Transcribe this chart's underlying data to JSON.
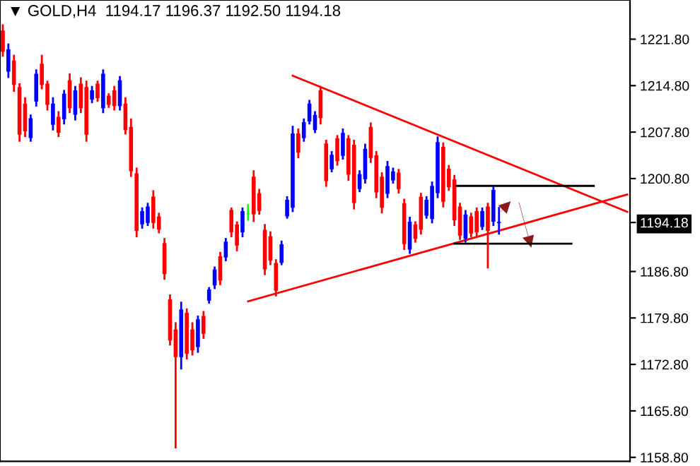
{
  "chart_data": {
    "type": "candlestick",
    "title": "▼ GOLD,H4  1194.17 1196.37 1192.50 1194.18",
    "categories": [
      null,
      null,
      null,
      null,
      null,
      null,
      null,
      null,
      null,
      null,
      null,
      null,
      null,
      null,
      null,
      null,
      null,
      null,
      null,
      null,
      null,
      null,
      null,
      null,
      null,
      null,
      null,
      null,
      null,
      null,
      null,
      null,
      null,
      null,
      null,
      null,
      null,
      null,
      null,
      null,
      null,
      null,
      null,
      null,
      null,
      null,
      null,
      null,
      null,
      null,
      null,
      null,
      null,
      null,
      null,
      null,
      null,
      null,
      null,
      null,
      null,
      null,
      null,
      null,
      null,
      null,
      null,
      null,
      null,
      null,
      null,
      null,
      null,
      null,
      null,
      null,
      null,
      null,
      null,
      null,
      null,
      null,
      null,
      null,
      null,
      null,
      null,
      null,
      null,
      null,
      null,
      null,
      null,
      null,
      null,
      null,
      null,
      null,
      null,
      null,
      null,
      null,
      null,
      null,
      null,
      null,
      null,
      null,
      null,
      null,
      null,
      null,
      null
    ],
    "ohlc": [
      [
        1223.0,
        1223.9,
        1219.3,
        1220.0
      ],
      [
        1217.0,
        1221.0,
        1216.1,
        1220.2
      ],
      [
        1218.5,
        1219.3,
        1214.0,
        1215.0
      ],
      [
        1214.5,
        1215.0,
        1206.5,
        1207.5
      ],
      [
        1212.0,
        1212.9,
        1207.2,
        1208.0
      ],
      [
        1207.0,
        1210.3,
        1206.5,
        1209.8
      ],
      [
        1212.5,
        1217.1,
        1211.8,
        1216.5
      ],
      [
        1218.0,
        1219.3,
        1214.4,
        1215.0
      ],
      [
        1215.0,
        1215.4,
        1211.2,
        1212.0
      ],
      [
        1209.0,
        1212.9,
        1208.2,
        1212.0
      ],
      [
        1210.0,
        1210.8,
        1207.2,
        1207.8
      ],
      [
        1209.8,
        1214.0,
        1209.1,
        1213.5
      ],
      [
        1215.5,
        1216.5,
        1210.8,
        1211.5
      ],
      [
        1210.5,
        1214.6,
        1209.7,
        1214.0
      ],
      [
        1215.0,
        1215.9,
        1210.8,
        1211.5
      ],
      [
        1214.5,
        1215.4,
        1206.5,
        1207.5
      ],
      [
        1212.8,
        1214.6,
        1212.3,
        1214.0
      ],
      [
        1215.0,
        1215.4,
        1212.5,
        1213.0
      ],
      [
        1211.5,
        1217.1,
        1210.8,
        1216.5
      ],
      [
        1213.2,
        1213.5,
        1211.6,
        1212.0
      ],
      [
        1214.0,
        1214.6,
        1211.2,
        1211.8
      ],
      [
        1211.8,
        1216.1,
        1211.2,
        1215.5
      ],
      [
        1212.0,
        1212.9,
        1207.6,
        1208.2
      ],
      [
        1208.5,
        1209.7,
        1201.2,
        1202.0
      ],
      [
        1201.5,
        1202.3,
        1192.1,
        1193.0
      ],
      [
        1194.0,
        1196.3,
        1193.4,
        1195.8
      ],
      [
        1194.2,
        1197.0,
        1193.8,
        1196.5
      ],
      [
        1198.0,
        1198.9,
        1193.4,
        1194.2
      ],
      [
        1195.0,
        1195.5,
        1192.7,
        1193.2
      ],
      [
        1191.0,
        1191.7,
        1185.7,
        1186.5
      ],
      [
        1182.5,
        1183.2,
        1175.8,
        1176.5
      ],
      [
        1178.0,
        1179.0,
        1160.3,
        1174.0
      ],
      [
        1174.0,
        1182.1,
        1172.2,
        1181.0
      ],
      [
        1180.5,
        1181.1,
        1173.7,
        1174.5
      ],
      [
        1178.0,
        1179.0,
        1174.3,
        1175.0
      ],
      [
        1175.5,
        1180.0,
        1174.7,
        1179.5
      ],
      [
        1180.0,
        1180.7,
        1176.8,
        1177.5
      ],
      [
        1182.5,
        1184.3,
        1182.1,
        1184.0
      ],
      [
        1184.8,
        1187.4,
        1184.3,
        1187.0
      ],
      [
        1189.0,
        1189.6,
        1184.9,
        1185.5
      ],
      [
        1189.0,
        1191.7,
        1188.5,
        1191.2
      ],
      [
        1196.0,
        1196.3,
        1192.1,
        1192.8
      ],
      [
        1193.8,
        1194.2,
        1190.0,
        1190.8
      ],
      [
        1192.8,
        1196.3,
        1192.1,
        1195.8
      ],
      [
        1195.5,
        1196.8,
        1194.6,
        1195.5
      ],
      [
        1201.0,
        1201.9,
        1194.4,
        1195.5
      ],
      [
        1198.5,
        1199.1,
        1195.5,
        1196.0
      ],
      [
        1193.0,
        1193.8,
        1186.4,
        1187.2
      ],
      [
        1192.0,
        1192.7,
        1187.9,
        1188.5
      ],
      [
        1188.0,
        1188.5,
        1183.2,
        1184.0
      ],
      [
        1188.2,
        1191.3,
        1187.9,
        1190.8
      ],
      [
        1195.2,
        1198.0,
        1194.9,
        1197.5
      ],
      [
        1196.5,
        1208.6,
        1195.9,
        1207.5
      ],
      [
        1207.5,
        1208.2,
        1204.0,
        1204.8
      ],
      [
        1207.0,
        1209.7,
        1206.5,
        1209.2
      ],
      [
        1209.5,
        1212.5,
        1209.1,
        1212.0
      ],
      [
        1208.2,
        1210.8,
        1207.8,
        1210.3
      ],
      [
        1214.0,
        1214.6,
        1209.1,
        1210.0
      ],
      [
        1206.0,
        1206.5,
        1199.7,
        1200.5
      ],
      [
        1202.3,
        1204.8,
        1201.9,
        1204.3
      ],
      [
        1206.8,
        1207.2,
        1202.9,
        1203.5
      ],
      [
        1204.3,
        1208.2,
        1203.8,
        1207.6
      ],
      [
        1206.8,
        1207.2,
        1200.6,
        1201.5
      ],
      [
        1205.8,
        1206.5,
        1196.3,
        1197.2
      ],
      [
        1199.3,
        1201.9,
        1198.9,
        1201.4
      ],
      [
        1200.8,
        1205.9,
        1200.2,
        1205.2
      ],
      [
        1208.5,
        1209.1,
        1203.3,
        1204.0
      ],
      [
        1204.2,
        1204.8,
        1198.0,
        1198.8
      ],
      [
        1201.0,
        1201.6,
        1195.7,
        1196.5
      ],
      [
        1198.6,
        1203.3,
        1198.0,
        1202.6
      ],
      [
        1200.6,
        1202.3,
        1200.2,
        1201.8
      ],
      [
        1201.6,
        1202.1,
        1198.7,
        1199.3
      ],
      [
        1197.0,
        1197.6,
        1190.2,
        1191.0
      ],
      [
        1190.2,
        1194.9,
        1189.6,
        1194.2
      ],
      [
        1193.8,
        1194.2,
        1191.3,
        1191.8
      ],
      [
        1198.0,
        1198.5,
        1192.5,
        1193.2
      ],
      [
        1195.3,
        1198.0,
        1194.9,
        1197.5
      ],
      [
        1194.8,
        1200.2,
        1194.2,
        1199.6
      ],
      [
        1198.7,
        1207.0,
        1198.0,
        1206.2
      ],
      [
        1205.5,
        1206.1,
        1196.6,
        1197.4
      ],
      [
        1202.2,
        1202.7,
        1199.1,
        1199.6
      ],
      [
        1200.6,
        1201.2,
        1193.8,
        1194.6
      ],
      [
        1196.5,
        1197.0,
        1191.7,
        1192.3
      ],
      [
        1191.8,
        1195.9,
        1191.3,
        1195.3
      ],
      [
        1195.0,
        1195.5,
        1192.1,
        1192.6
      ],
      [
        1195.8,
        1196.3,
        1192.1,
        1192.8
      ],
      [
        1193.6,
        1196.3,
        1193.2,
        1195.8
      ],
      [
        1196.5,
        1197.0,
        1187.4,
        1193.0
      ],
      [
        1194.4,
        1199.5,
        1193.8,
        1199.0
      ],
      [
        1194.17,
        1196.37,
        1192.5,
        1194.18
      ],
      null,
      null,
      null,
      null,
      null,
      null,
      null,
      null,
      null,
      null,
      null,
      null,
      null,
      null,
      null,
      null,
      null,
      null,
      null,
      null,
      null,
      null,
      null
    ],
    "colors": [
      "#ff0000",
      "#0000ff",
      "#ff0000",
      "#ff0000",
      "#ff0000",
      "#0000ff",
      "#0000ff",
      "#ff0000",
      "#ff0000",
      "#0000ff",
      "#ff0000",
      "#0000ff",
      "#ff0000",
      "#0000ff",
      "#ff0000",
      "#ff0000",
      "#0000ff",
      "#ff0000",
      "#0000ff",
      "#ff0000",
      "#ff0000",
      "#0000ff",
      "#ff0000",
      "#ff0000",
      "#ff0000",
      "#0000ff",
      "#0000ff",
      "#ff0000",
      "#ff0000",
      "#ff0000",
      "#ff0000",
      "#ff0000",
      "#0000ff",
      "#ff0000",
      "#ff0000",
      "#0000ff",
      "#ff0000",
      "#0000ff",
      "#0000ff",
      "#ff0000",
      "#0000ff",
      "#ff0000",
      "#ff0000",
      "#0000ff",
      "#00ff00",
      "#ff0000",
      "#ff0000",
      "#ff0000",
      "#ff0000",
      "#ff0000",
      "#0000ff",
      "#0000ff",
      "#0000ff",
      "#ff0000",
      "#0000ff",
      "#0000ff",
      "#0000ff",
      "#ff0000",
      "#ff0000",
      "#0000ff",
      "#ff0000",
      "#0000ff",
      "#ff0000",
      "#ff0000",
      "#0000ff",
      "#0000ff",
      "#ff0000",
      "#ff0000",
      "#ff0000",
      "#0000ff",
      "#0000ff",
      "#ff0000",
      "#ff0000",
      "#0000ff",
      "#ff0000",
      "#ff0000",
      "#0000ff",
      "#0000ff",
      "#0000ff",
      "#ff0000",
      "#ff0000",
      "#ff0000",
      "#ff0000",
      "#0000ff",
      "#ff0000",
      "#ff0000",
      "#0000ff",
      "#ff0000",
      "#0000ff",
      "#0000ff",
      null,
      null,
      null,
      null,
      null,
      null,
      null,
      null,
      null,
      null,
      null,
      null,
      null,
      null,
      null,
      null,
      null,
      null,
      null,
      null,
      null,
      null,
      null
    ],
    "series": [
      {
        "type": "line",
        "color": "#ff0000",
        "values": [
          null,
          null,
          null,
          null,
          null,
          null,
          null,
          null,
          null,
          null,
          null,
          null,
          null,
          null,
          null,
          null,
          null,
          null,
          null,
          null,
          null,
          null,
          null,
          null,
          null,
          null,
          null,
          null,
          null,
          null,
          null,
          null,
          null,
          null,
          null,
          null,
          null,
          null,
          null,
          null,
          null,
          null,
          null,
          null,
          null,
          null,
          null,
          null,
          null,
          null,
          null,
          null,
          1216.3,
          null,
          null,
          null,
          null,
          null,
          null,
          null,
          null,
          null,
          null,
          null,
          null,
          null,
          null,
          null,
          null,
          null,
          null,
          null,
          null,
          null,
          null,
          null,
          null,
          null,
          null,
          null,
          null,
          null,
          null,
          null,
          null,
          null,
          null,
          null,
          null,
          null,
          null,
          null,
          null,
          null,
          null,
          null,
          null,
          null,
          null,
          null,
          null,
          null,
          null,
          null,
          null,
          null,
          null,
          null,
          null,
          null,
          null,
          null,
          1195.8
        ]
      },
      {
        "type": "line",
        "color": "#ff0000",
        "values": [
          null,
          null,
          null,
          null,
          null,
          null,
          null,
          null,
          null,
          null,
          null,
          null,
          null,
          null,
          null,
          null,
          null,
          null,
          null,
          null,
          null,
          null,
          null,
          null,
          null,
          null,
          null,
          null,
          null,
          null,
          null,
          null,
          null,
          null,
          null,
          null,
          null,
          null,
          null,
          null,
          null,
          null,
          null,
          null,
          1182.3,
          null,
          null,
          null,
          null,
          null,
          null,
          null,
          null,
          null,
          null,
          null,
          null,
          null,
          null,
          null,
          null,
          null,
          null,
          null,
          null,
          null,
          null,
          null,
          null,
          null,
          null,
          null,
          null,
          null,
          null,
          null,
          null,
          null,
          null,
          null,
          null,
          null,
          null,
          null,
          null,
          null,
          null,
          null,
          null,
          null,
          null,
          null,
          null,
          null,
          null,
          null,
          null,
          null,
          null,
          null,
          null,
          null,
          null,
          null,
          null,
          null,
          null,
          null,
          null,
          null,
          null,
          null,
          1198.4
        ]
      },
      {
        "type": "line",
        "color": "#000000",
        "values": [
          null,
          null,
          null,
          null,
          null,
          null,
          null,
          null,
          null,
          null,
          null,
          null,
          null,
          null,
          null,
          null,
          null,
          null,
          null,
          null,
          null,
          null,
          null,
          null,
          null,
          null,
          null,
          null,
          null,
          null,
          null,
          null,
          null,
          null,
          null,
          null,
          null,
          null,
          null,
          null,
          null,
          null,
          null,
          null,
          null,
          null,
          null,
          null,
          null,
          null,
          null,
          null,
          null,
          null,
          null,
          null,
          null,
          null,
          null,
          null,
          null,
          null,
          null,
          null,
          null,
          null,
          null,
          null,
          null,
          null,
          null,
          null,
          null,
          null,
          null,
          null,
          null,
          null,
          null,
          null,
          null,
          1199.7,
          null,
          null,
          null,
          null,
          null,
          null,
          null,
          null,
          null,
          null,
          null,
          null,
          null,
          null,
          null,
          null,
          null,
          null,
          null,
          null,
          null,
          null,
          null,
          null,
          1199.7,
          null,
          null,
          null,
          null,
          null,
          null
        ]
      },
      {
        "type": "line",
        "color": "#000000",
        "values": [
          null,
          null,
          null,
          null,
          null,
          null,
          null,
          null,
          null,
          null,
          null,
          null,
          null,
          null,
          null,
          null,
          null,
          null,
          null,
          null,
          null,
          null,
          null,
          null,
          null,
          null,
          null,
          null,
          null,
          null,
          null,
          null,
          null,
          null,
          null,
          null,
          null,
          null,
          null,
          null,
          null,
          null,
          null,
          null,
          null,
          null,
          null,
          null,
          null,
          null,
          null,
          null,
          null,
          null,
          null,
          null,
          null,
          null,
          null,
          null,
          null,
          null,
          null,
          null,
          null,
          null,
          null,
          null,
          null,
          null,
          null,
          null,
          null,
          null,
          null,
          null,
          null,
          null,
          null,
          null,
          null,
          1191.0,
          null,
          null,
          null,
          null,
          null,
          null,
          null,
          null,
          null,
          null,
          null,
          null,
          null,
          null,
          null,
          null,
          null,
          null,
          null,
          null,
          1191.0,
          null,
          null,
          null,
          null,
          null,
          null,
          null,
          null,
          null,
          null
        ]
      }
    ],
    "ylim": [
      1158.2,
      1227.7
    ],
    "yticks": [
      {
        "value": 1158.8,
        "label": "1158.80"
      },
      {
        "value": 1165.8,
        "label": "1165.80"
      },
      {
        "value": 1172.8,
        "label": "1172.80"
      },
      {
        "value": 1179.8,
        "label": "1179.80"
      },
      {
        "value": 1186.8,
        "label": "1186.80"
      },
      {
        "value": 1194.18,
        "label": "1194.18"
      },
      {
        "value": 1200.8,
        "label": "1200.80"
      },
      {
        "value": 1207.8,
        "label": "1207.80"
      },
      {
        "value": 1214.8,
        "label": "1214.80"
      },
      {
        "value": 1221.8,
        "label": "1221.80"
      }
    ],
    "tick_labels": "y"
  }
}
